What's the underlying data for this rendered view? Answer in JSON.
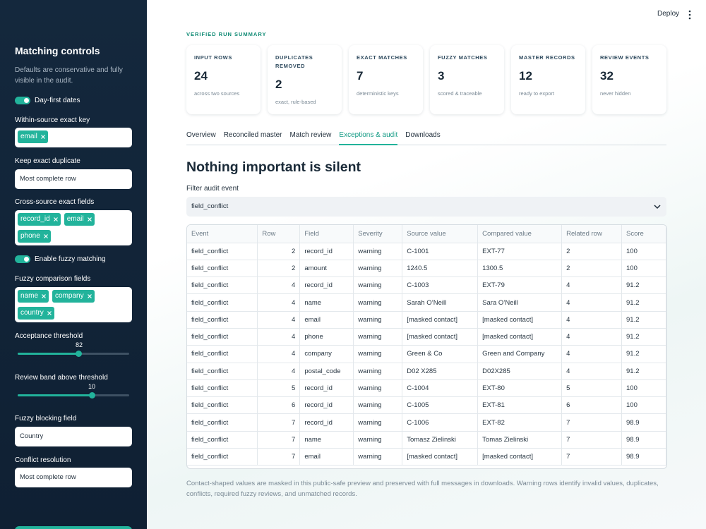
{
  "sidebar": {
    "title": "Matching controls",
    "description": "Defaults are conservative and fully visible in the audit.",
    "day_first": "Day-first dates",
    "within_key": {
      "label": "Within-source exact key",
      "chips": [
        "email"
      ]
    },
    "keep_duplicate": {
      "label": "Keep exact duplicate",
      "value": "Most complete row"
    },
    "cross_fields": {
      "label": "Cross-source exact fields",
      "chips": [
        "record_id",
        "email",
        "phone"
      ]
    },
    "fuzzy_toggle": "Enable fuzzy matching",
    "fuzzy_fields": {
      "label": "Fuzzy comparison fields",
      "chips": [
        "name",
        "company",
        "country"
      ]
    },
    "threshold": {
      "label": "Acceptance threshold",
      "value": 82
    },
    "review_band": {
      "label": "Review band above threshold",
      "value": 10
    },
    "blocking": {
      "label": "Fuzzy blocking field",
      "value": "Country"
    },
    "conflict": {
      "label": "Conflict resolution",
      "value": "Most complete row"
    }
  },
  "header": {
    "deploy": "Deploy"
  },
  "summary": {
    "label": "VERIFIED RUN SUMMARY",
    "cards": [
      {
        "label": "INPUT ROWS",
        "value": 24,
        "note": "across two sources"
      },
      {
        "label": "DUPLICATES REMOVED",
        "value": 2,
        "note": "exact, rule-based"
      },
      {
        "label": "EXACT MATCHES",
        "value": 7,
        "note": "deterministic keys"
      },
      {
        "label": "FUZZY MATCHES",
        "value": 3,
        "note": "scored & traceable"
      },
      {
        "label": "MASTER RECORDS",
        "value": 12,
        "note": "ready to export"
      },
      {
        "label": "REVIEW EVENTS",
        "value": 32,
        "note": "never hidden"
      }
    ]
  },
  "tabs": {
    "items": [
      "Overview",
      "Reconciled master",
      "Match review",
      "Exceptions & audit",
      "Downloads"
    ],
    "active": 3
  },
  "heading": "Nothing important is silent",
  "filter": {
    "label": "Filter audit event",
    "value": "field_conflict"
  },
  "table": {
    "columns": [
      "Event",
      "Row",
      "Field",
      "Severity",
      "Source value",
      "Compared value",
      "Related row",
      "Score"
    ],
    "rows": [
      [
        "field_conflict",
        2,
        "record_id",
        "warning",
        "C-1001",
        "EXT-77",
        2,
        100
      ],
      [
        "field_conflict",
        2,
        "amount",
        "warning",
        "1240.5",
        "1300.5",
        2,
        100
      ],
      [
        "field_conflict",
        4,
        "record_id",
        "warning",
        "C-1003",
        "EXT-79",
        4,
        91.2
      ],
      [
        "field_conflict",
        4,
        "name",
        "warning",
        "Sarah O’Neill",
        "Sara O’Neill",
        4,
        91.2
      ],
      [
        "field_conflict",
        4,
        "email",
        "warning",
        "[masked contact]",
        "[masked contact]",
        4,
        91.2
      ],
      [
        "field_conflict",
        4,
        "phone",
        "warning",
        "[masked contact]",
        "[masked contact]",
        4,
        91.2
      ],
      [
        "field_conflict",
        4,
        "company",
        "warning",
        "Green & Co",
        "Green and Company",
        4,
        91.2
      ],
      [
        "field_conflict",
        4,
        "postal_code",
        "warning",
        "D02 X285",
        "D02X285",
        4,
        91.2
      ],
      [
        "field_conflict",
        5,
        "record_id",
        "warning",
        "C-1004",
        "EXT-80",
        5,
        100
      ],
      [
        "field_conflict",
        6,
        "record_id",
        "warning",
        "C-1005",
        "EXT-81",
        6,
        100
      ],
      [
        "field_conflict",
        7,
        "record_id",
        "warning",
        "C-1006",
        "EXT-82",
        7,
        98.9
      ],
      [
        "field_conflict",
        7,
        "name",
        "warning",
        "Tomasz Zielinski",
        "Tomas Zielinski",
        7,
        98.9
      ],
      [
        "field_conflict",
        7,
        "email",
        "warning",
        "[masked contact]",
        "[masked contact]",
        7,
        98.9
      ]
    ]
  },
  "footnote": "Contact-shaped values are masked in this public-safe preview and preserved with full messages in downloads. Warning rows identify invalid values, duplicates, conflicts, required fuzzy reviews, and unmatched records."
}
